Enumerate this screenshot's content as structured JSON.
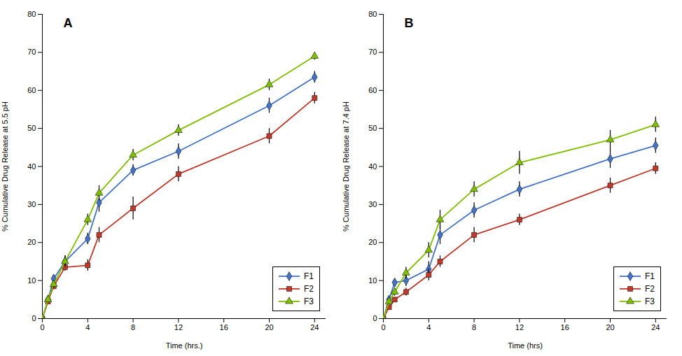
{
  "chart_data": [
    {
      "type": "line",
      "title": "A",
      "xlabel": "Time (hrs.)",
      "ylabel": "% Cumulative Drug Release at 5.5 pH",
      "x": [
        0,
        0.5,
        1,
        2,
        4,
        5,
        8,
        12,
        20,
        24
      ],
      "series": [
        {
          "name": "F1",
          "color": "#4472C4",
          "marker": "diamond",
          "values": [
            0,
            5,
            10.5,
            15,
            21,
            30.5,
            39,
            44,
            56,
            63.5
          ],
          "error": [
            0,
            0.5,
            1.0,
            1.5,
            1.5,
            2.5,
            1.5,
            2.0,
            2.0,
            1.5
          ]
        },
        {
          "name": "F2",
          "color": "#C0392B",
          "marker": "square",
          "values": [
            0,
            4.5,
            8.5,
            13.5,
            14,
            22,
            29,
            38,
            48,
            58
          ],
          "error": [
            0,
            0.5,
            0.8,
            1.0,
            1.5,
            2.0,
            3.0,
            2.0,
            2.0,
            1.5
          ]
        },
        {
          "name": "F3",
          "color": "#7FBF00",
          "marker": "triangle",
          "values": [
            0,
            5,
            9,
            15,
            26,
            33,
            43,
            49.5,
            61.5,
            69
          ],
          "error": [
            0,
            0.5,
            1.0,
            1.5,
            1.5,
            2.0,
            1.5,
            1.5,
            1.5,
            1.0
          ]
        }
      ],
      "xlim": [
        0,
        25
      ],
      "ylim": [
        0,
        80
      ],
      "xticks": [
        0,
        4,
        8,
        12,
        16,
        20,
        24
      ],
      "yticks": [
        0,
        10,
        20,
        30,
        40,
        50,
        60,
        70,
        80
      ],
      "legend": "lower right",
      "grid": false
    },
    {
      "type": "line",
      "title": "B",
      "xlabel": "Time (hrs)",
      "ylabel": "% Cumulative Drug Release at 7.4 pH",
      "x": [
        0,
        0.5,
        1,
        2,
        4,
        5,
        8,
        12,
        20,
        24
      ],
      "series": [
        {
          "name": "F1",
          "color": "#4472C4",
          "marker": "diamond",
          "values": [
            0,
            5,
            9.5,
            10,
            13,
            22,
            28.5,
            34,
            42,
            45.5
          ],
          "error": [
            0,
            0.5,
            1.0,
            1.5,
            2.0,
            2.5,
            2.0,
            2.0,
            2.5,
            2.0
          ]
        },
        {
          "name": "F2",
          "color": "#C0392B",
          "marker": "square",
          "values": [
            0,
            3,
            5,
            7,
            11.5,
            15,
            22,
            26,
            35,
            39.5
          ],
          "error": [
            0,
            0.5,
            0.5,
            1.0,
            1.5,
            1.5,
            2.0,
            1.5,
            2.0,
            1.5
          ]
        },
        {
          "name": "F3",
          "color": "#7FBF00",
          "marker": "triangle",
          "values": [
            0,
            4.5,
            7,
            12,
            18,
            26,
            34,
            41,
            47,
            51
          ],
          "error": [
            0,
            0.5,
            1.0,
            1.5,
            2.0,
            2.5,
            2.0,
            3.0,
            2.5,
            2.0
          ]
        }
      ],
      "xlim": [
        0,
        25
      ],
      "ylim": [
        0,
        80
      ],
      "xticks": [
        0,
        4,
        8,
        12,
        16,
        20,
        24
      ],
      "yticks": [
        0,
        10,
        20,
        30,
        40,
        50,
        60,
        70,
        80
      ],
      "legend": "lower right",
      "grid": false
    }
  ]
}
